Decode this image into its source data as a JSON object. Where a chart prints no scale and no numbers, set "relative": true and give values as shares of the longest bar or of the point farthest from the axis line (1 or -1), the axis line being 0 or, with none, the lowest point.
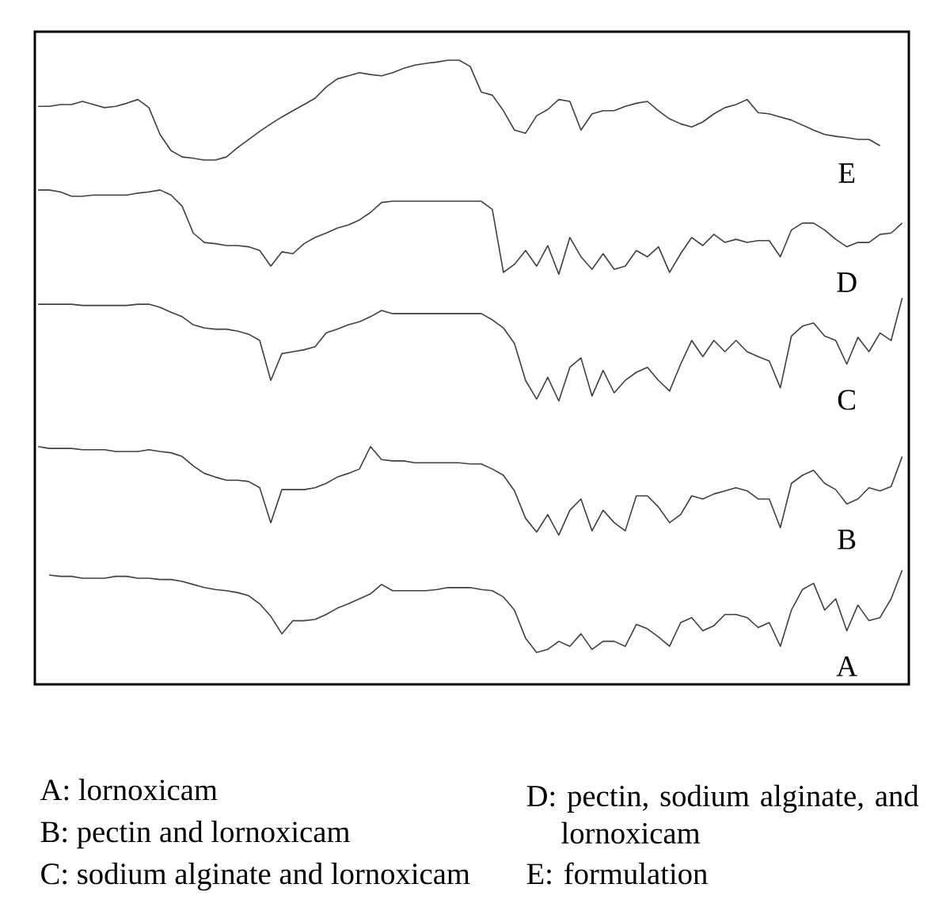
{
  "chart_data": {
    "type": "line",
    "relative": true,
    "categories": [
      null,
      null,
      null,
      null,
      null,
      null,
      null,
      null,
      null,
      null,
      null,
      null,
      null,
      null,
      null,
      null,
      null,
      null,
      null,
      null,
      null,
      null,
      null,
      null,
      null,
      null,
      null,
      null,
      null,
      null,
      null,
      null,
      null,
      null,
      null,
      null,
      null,
      null,
      null,
      null,
      null,
      null,
      null,
      null,
      null,
      null,
      null,
      null,
      null,
      null,
      null,
      null,
      null,
      null,
      null,
      null,
      null,
      null,
      null,
      null,
      null,
      null,
      null,
      null,
      null,
      null,
      null,
      null,
      null,
      null,
      null,
      null,
      null,
      null,
      null,
      null,
      null,
      null,
      null
    ],
    "series": [
      {
        "name": "A",
        "color": "#404040",
        "values": [
          null,
          0.175,
          0.173,
          0.173,
          0.17,
          0.17,
          0.17,
          0.173,
          0.173,
          0.17,
          0.17,
          0.168,
          0.168,
          0.165,
          0.16,
          0.155,
          0.152,
          0.15,
          0.147,
          0.142,
          0.129,
          0.109,
          0.081,
          0.102,
          0.102,
          0.104,
          0.112,
          0.122,
          0.129,
          0.137,
          0.145,
          0.16,
          0.15,
          0.15,
          0.15,
          0.15,
          0.152,
          0.155,
          0.155,
          0.155,
          0.152,
          0.15,
          0.14,
          0.119,
          0.074,
          0.051,
          0.056,
          0.069,
          0.061,
          0.081,
          0.056,
          0.069,
          0.069,
          0.061,
          0.096,
          0.089,
          0.076,
          0.061,
          0.099,
          0.107,
          0.086,
          0.094,
          0.112,
          0.112,
          0.107,
          0.091,
          0.099,
          0.061,
          0.119,
          0.152,
          0.162,
          0.119,
          0.137,
          0.086,
          0.127,
          0.102,
          0.107,
          0.137,
          0.183
        ]
      },
      {
        "name": "B",
        "color": "#404040",
        "values": [
          0.381,
          0.378,
          0.378,
          0.378,
          0.376,
          0.376,
          0.376,
          0.373,
          0.373,
          0.373,
          0.376,
          0.373,
          0.371,
          0.365,
          0.35,
          0.338,
          0.332,
          0.327,
          0.327,
          0.325,
          0.315,
          0.259,
          0.312,
          0.312,
          0.312,
          0.315,
          0.322,
          0.332,
          0.338,
          0.345,
          0.381,
          0.36,
          0.358,
          0.358,
          0.355,
          0.355,
          0.355,
          0.355,
          0.355,
          0.353,
          0.353,
          0.345,
          0.335,
          0.31,
          0.266,
          0.244,
          0.272,
          0.239,
          0.279,
          0.297,
          0.246,
          0.279,
          0.259,
          0.246,
          0.302,
          0.302,
          0.284,
          0.259,
          0.272,
          0.302,
          0.297,
          0.305,
          0.31,
          0.315,
          0.31,
          0.297,
          0.297,
          0.251,
          0.322,
          0.335,
          0.343,
          0.322,
          0.312,
          0.289,
          0.297,
          0.315,
          0.31,
          0.317,
          0.365
        ]
      },
      {
        "name": "C",
        "color": "#404040",
        "values": [
          0.609,
          0.609,
          0.609,
          0.609,
          0.607,
          0.607,
          0.607,
          0.607,
          0.607,
          0.609,
          0.609,
          0.604,
          0.596,
          0.589,
          0.576,
          0.571,
          0.569,
          0.569,
          0.566,
          0.561,
          0.551,
          0.487,
          0.53,
          0.533,
          0.536,
          0.541,
          0.563,
          0.569,
          0.576,
          0.581,
          0.589,
          0.599,
          0.594,
          0.594,
          0.594,
          0.594,
          0.594,
          0.594,
          0.594,
          0.594,
          0.594,
          0.584,
          0.571,
          0.546,
          0.487,
          0.457,
          0.492,
          0.454,
          0.508,
          0.523,
          0.462,
          0.503,
          0.467,
          0.487,
          0.5,
          0.508,
          0.487,
          0.47,
          0.513,
          0.551,
          0.525,
          0.551,
          0.533,
          0.551,
          0.533,
          0.525,
          0.518,
          0.475,
          0.558,
          0.574,
          0.579,
          0.558,
          0.551,
          0.513,
          0.556,
          0.533,
          0.563,
          0.551,
          0.619
        ]
      },
      {
        "name": "D",
        "color": "#404040",
        "values": [
          0.792,
          0.792,
          0.789,
          0.782,
          0.782,
          0.784,
          0.784,
          0.784,
          0.784,
          0.787,
          0.789,
          0.792,
          0.784,
          0.766,
          0.723,
          0.708,
          0.706,
          0.703,
          0.703,
          0.701,
          0.695,
          0.67,
          0.693,
          0.69,
          0.706,
          0.716,
          0.723,
          0.731,
          0.736,
          0.744,
          0.756,
          0.772,
          0.774,
          0.774,
          0.774,
          0.774,
          0.774,
          0.774,
          0.774,
          0.774,
          0.774,
          0.761,
          0.66,
          0.673,
          0.695,
          0.67,
          0.703,
          0.657,
          0.716,
          0.685,
          0.665,
          0.69,
          0.665,
          0.67,
          0.695,
          0.685,
          0.701,
          0.66,
          0.69,
          0.716,
          0.703,
          0.721,
          0.708,
          0.713,
          0.708,
          0.711,
          0.711,
          0.685,
          0.728,
          0.739,
          0.739,
          0.728,
          0.713,
          0.701,
          0.708,
          0.708,
          0.721,
          0.723,
          0.739
        ]
      },
      {
        "name": "E",
        "color": "#404040",
        "values": [
          0.926,
          0.926,
          0.929,
          0.929,
          0.934,
          0.929,
          0.924,
          0.926,
          0.931,
          0.937,
          0.924,
          0.881,
          0.855,
          0.845,
          0.843,
          0.84,
          0.84,
          0.845,
          0.86,
          0.873,
          0.886,
          0.898,
          0.909,
          0.919,
          0.929,
          0.939,
          0.957,
          0.97,
          0.975,
          0.98,
          0.977,
          0.975,
          0.98,
          0.987,
          0.992,
          0.995,
          0.997,
          1.0,
          1.0,
          0.99,
          0.949,
          0.944,
          0.919,
          0.888,
          0.883,
          0.911,
          0.921,
          0.937,
          0.934,
          0.888,
          0.914,
          0.919,
          0.919,
          0.926,
          0.931,
          0.934,
          0.919,
          0.906,
          0.898,
          0.893,
          0.901,
          0.914,
          0.924,
          0.929,
          0.937,
          0.916,
          0.914,
          0.909,
          0.904,
          0.896,
          0.888,
          0.881,
          0.878,
          0.876,
          0.873,
          0.873,
          0.863,
          null,
          null
        ]
      }
    ],
    "annotations": [
      "A: lornoxicam",
      "B: pectin and lornoxicam",
      "C: sodium alginate and lornoxicam",
      "D: pectin, sodium alginate, and lornoxicam",
      "E: formulation"
    ]
  }
}
